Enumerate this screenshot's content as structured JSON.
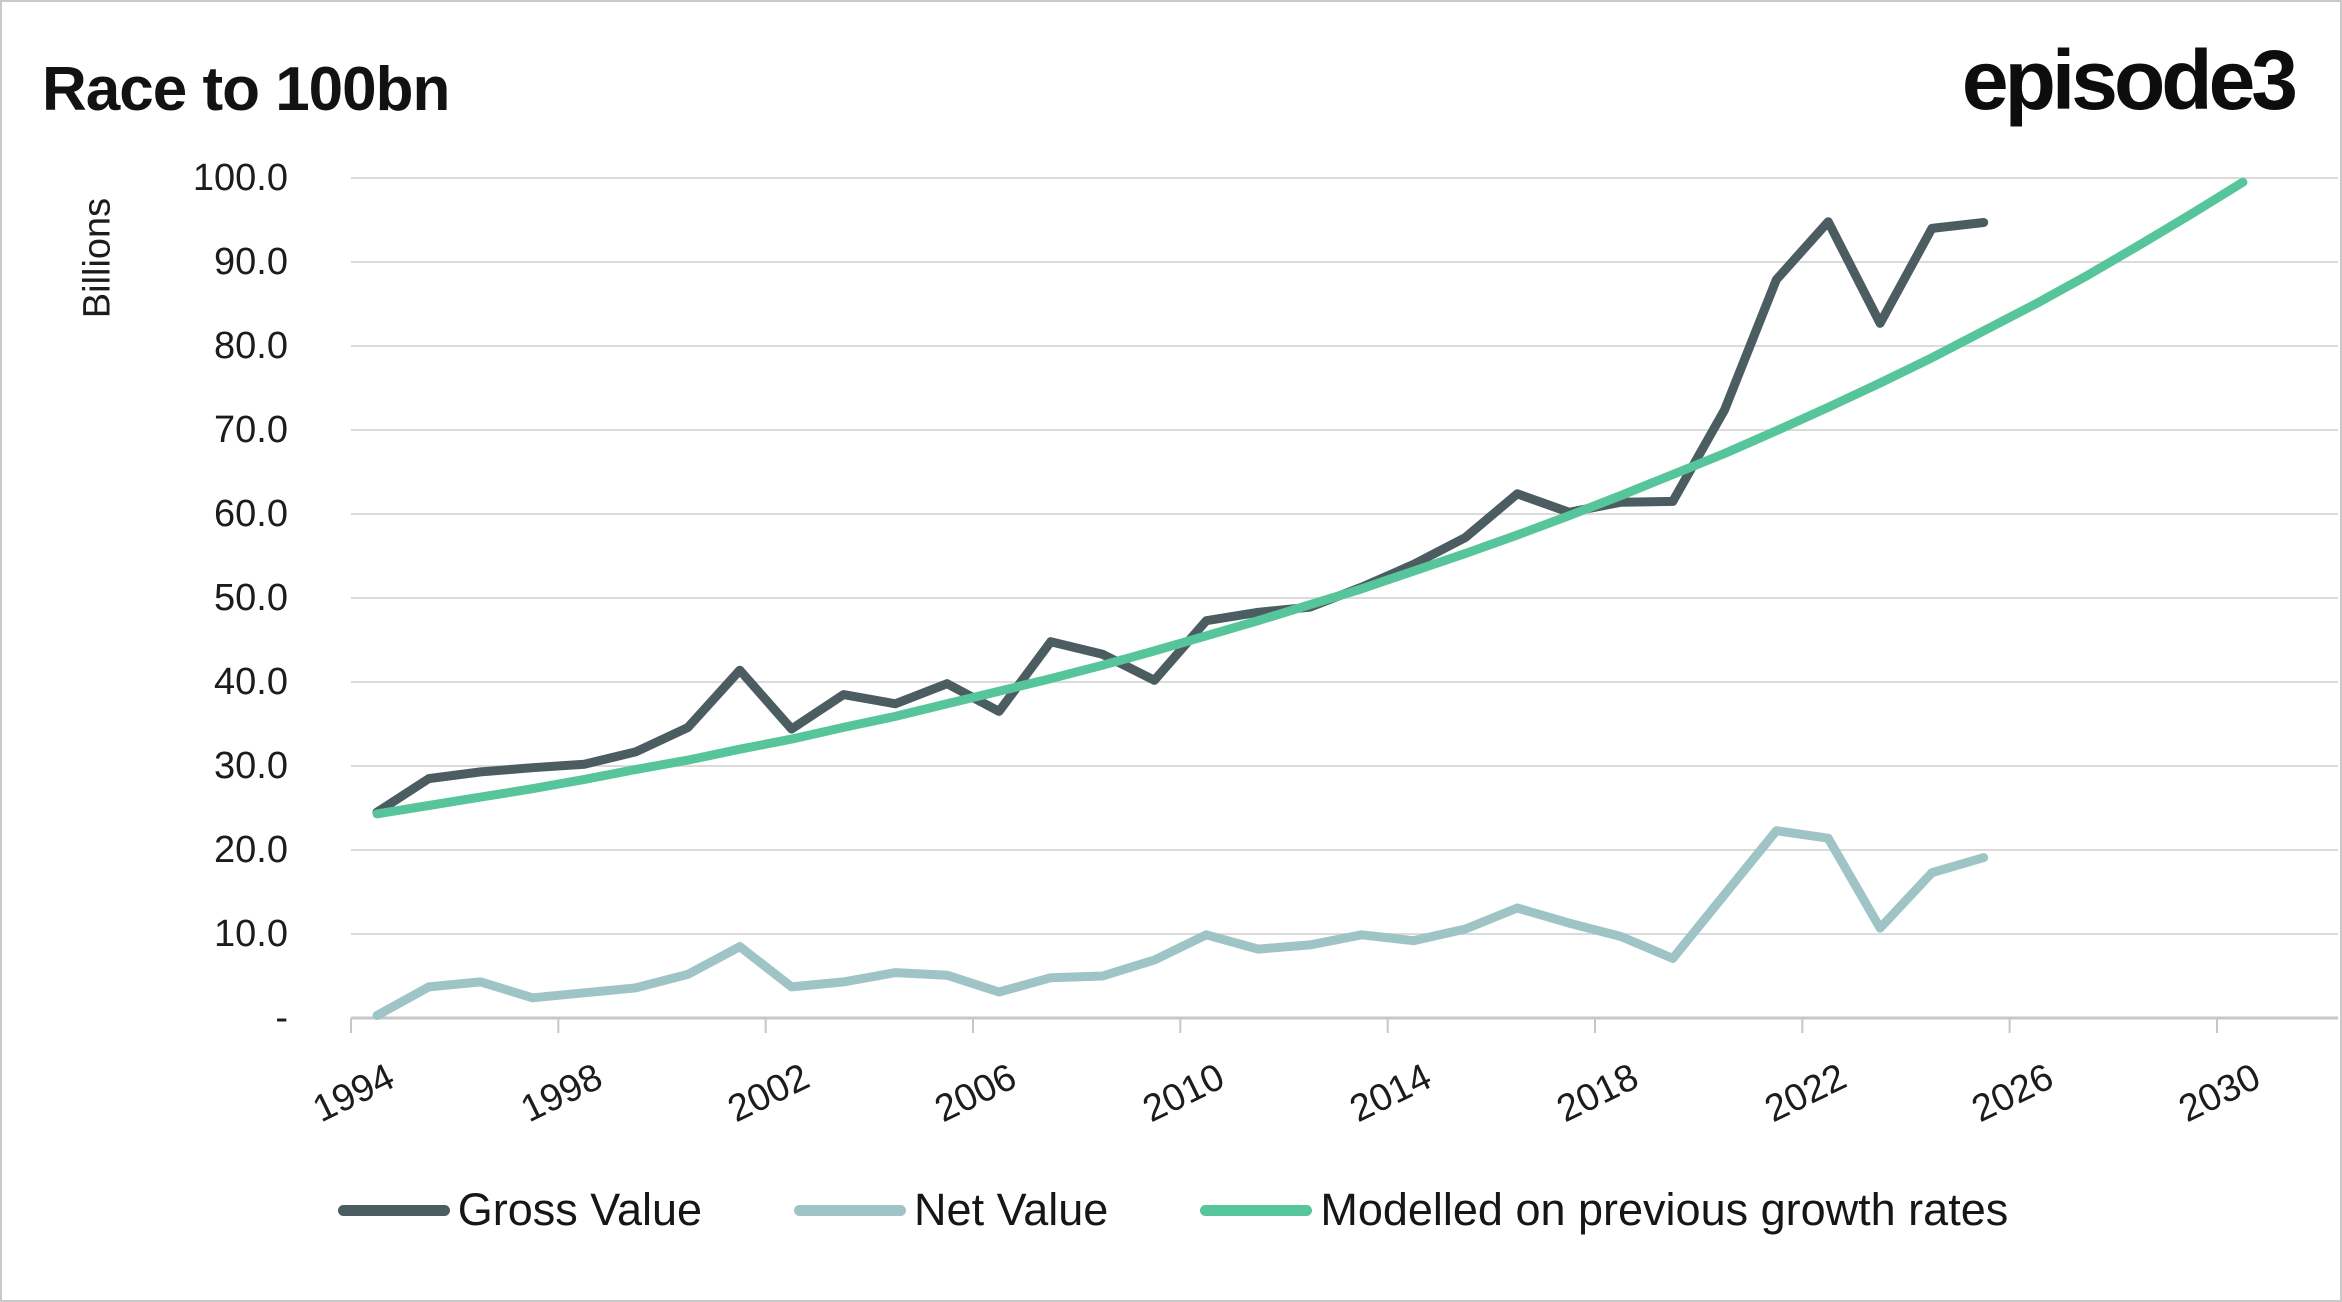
{
  "header": {
    "title": "Race to 100bn",
    "brand": "episode3"
  },
  "axes": {
    "y_title": "Billions",
    "y_ticks": [
      "100.0",
      "90.0",
      "80.0",
      "70.0",
      "60.0",
      "50.0",
      "40.0",
      "30.0",
      "20.0",
      "10.0",
      "-"
    ],
    "x_ticks": [
      "1994",
      "1998",
      "2002",
      "2006",
      "2010",
      "2014",
      "2018",
      "2022",
      "2026",
      "2030"
    ]
  },
  "colors": {
    "gross": "#4B5D60",
    "net": "#9FC4C6",
    "model": "#57C59B",
    "grid": "#DBDBDB",
    "axis": "#C7C7C7"
  },
  "chart_data": {
    "type": "line",
    "title": "Race to 100bn",
    "xlabel": "",
    "ylabel": "Billions",
    "ylim": [
      0,
      100
    ],
    "x_range": [
      1994,
      2030
    ],
    "x_tick_step": 4,
    "grid": true,
    "legend_position": "bottom",
    "series": [
      {
        "name": "Gross Value",
        "color": "#4B5D60",
        "x_start": 1994,
        "years_span": [
          1994,
          2025
        ],
        "values": [
          24.5,
          28.5,
          29.3,
          29.8,
          30.2,
          31.7,
          34.6,
          41.4,
          34.4,
          38.5,
          37.4,
          39.8,
          36.5,
          44.8,
          43.3,
          40.2,
          47.3,
          48.3,
          48.9,
          51.3,
          54.0,
          57.2,
          62.4,
          60.2,
          61.4,
          61.5,
          72.4,
          87.9,
          94.8,
          82.7,
          94.0,
          94.7
        ]
      },
      {
        "name": "Net Value",
        "color": "#9FC4C6",
        "x_start": 1994,
        "years_span": [
          1994,
          2025
        ],
        "values": [
          0.3,
          3.7,
          4.3,
          2.4,
          3.0,
          3.6,
          5.2,
          8.5,
          3.7,
          4.3,
          5.4,
          5.1,
          3.1,
          4.8,
          5.0,
          6.9,
          9.9,
          8.2,
          8.7,
          9.9,
          9.2,
          10.6,
          13.1,
          11.3,
          9.7,
          7.1,
          14.7,
          22.3,
          21.4,
          10.7,
          17.3,
          19.1
        ]
      },
      {
        "name": "Modelled on previous growth rates",
        "color": "#57C59B",
        "x_start": 1994,
        "years_span": [
          1994,
          2030
        ],
        "values": [
          24.3,
          25.3,
          26.3,
          27.3,
          28.4,
          29.6,
          30.7,
          32.0,
          33.2,
          34.6,
          35.9,
          37.4,
          38.9,
          40.4,
          42.0,
          43.7,
          45.5,
          47.3,
          49.2,
          51.1,
          53.2,
          55.3,
          57.5,
          59.8,
          62.2,
          64.7,
          67.2,
          69.9,
          72.7,
          75.6,
          78.6,
          81.8,
          85.0,
          88.4,
          92.0,
          95.7,
          99.5
        ]
      }
    ]
  }
}
